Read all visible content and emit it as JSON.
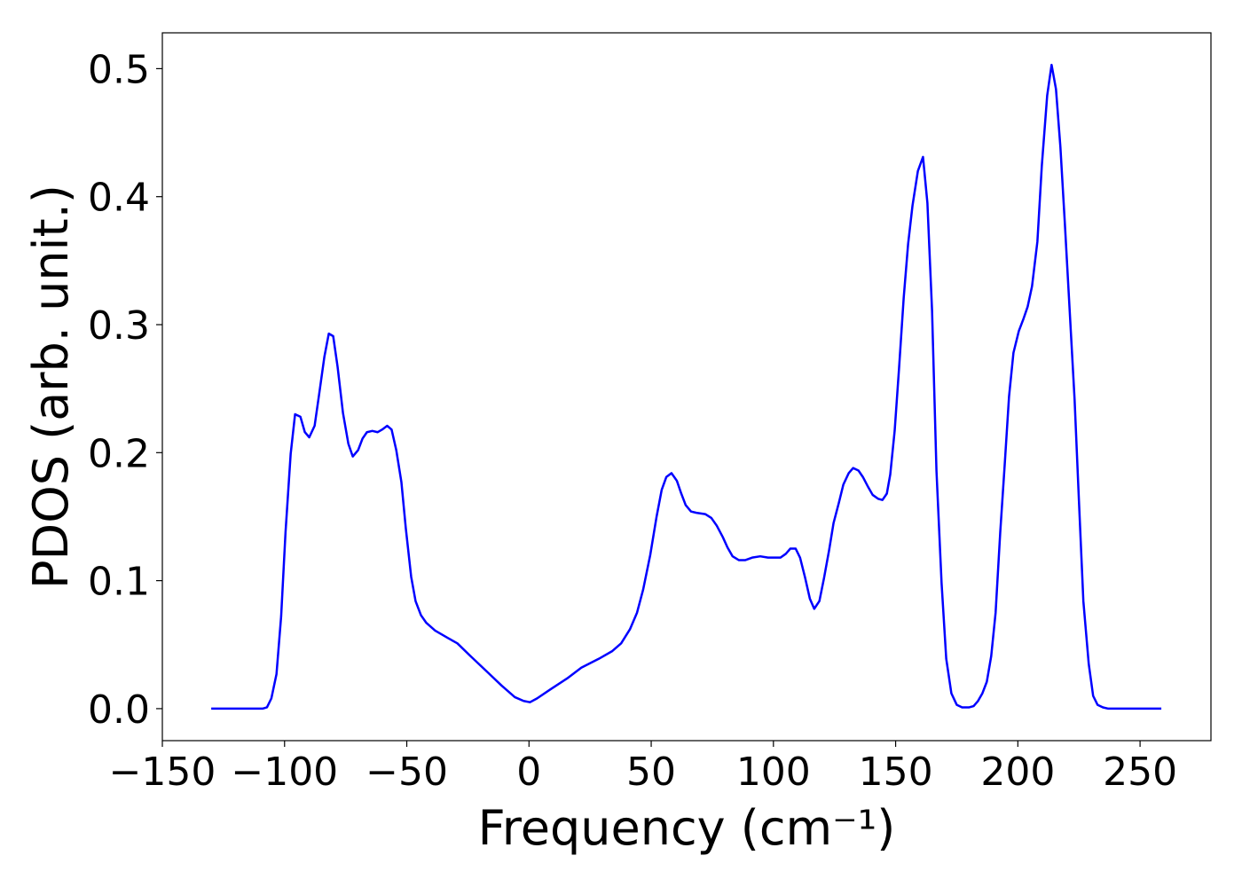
{
  "chart_data": {
    "type": "line",
    "x_label": "Frequency (cm⁻¹)",
    "y_label": "PDOS (arb. unit.)",
    "x": [
      -130,
      -109,
      -107.2,
      -105.4,
      -103.3,
      -101.4,
      -99.6,
      -97.5,
      -95.7,
      -93.5,
      -91.7,
      -89.9,
      -87.7,
      -85.9,
      -83.7,
      -81.9,
      -80.1,
      -78.3,
      -76.1,
      -73.9,
      -72.1,
      -69.9,
      -68.1,
      -66.3,
      -64.1,
      -61.9,
      -60.1,
      -58,
      -56.2,
      -54.3,
      -52.2,
      -50.4,
      -48.2,
      -46.4,
      -44.2,
      -42,
      -38.4,
      -33,
      -29.3,
      -23.9,
      -16.7,
      -11.2,
      -5.8,
      -2.2,
      0.4,
      3.3,
      8.7,
      15.9,
      21.4,
      28.6,
      34.1,
      37.7,
      41.3,
      44.2,
      46.7,
      49.6,
      52.2,
      54.3,
      56.2,
      58.3,
      60.5,
      62.3,
      64.1,
      66.3,
      68.5,
      72.1,
      74.6,
      76.8,
      79.3,
      81.2,
      83.3,
      85.9,
      88.4,
      91.3,
      94.6,
      97.8,
      101.1,
      102.9,
      105.1,
      106.9,
      109.1,
      110.9,
      113,
      114.9,
      116.7,
      118.8,
      120.7,
      122.8,
      124.6,
      126.8,
      128.6,
      130.8,
      132.6,
      134.8,
      136.6,
      138.8,
      140.6,
      142.8,
      144.6,
      146.4,
      147.8,
      149.6,
      151.4,
      153.3,
      155.1,
      156.9,
      159.1,
      161.2,
      163,
      164.9,
      166.7,
      168.8,
      170.7,
      172.8,
      175,
      177.2,
      180.1,
      181.9,
      183.7,
      185.5,
      187.3,
      189.1,
      190.9,
      192.8,
      194.6,
      196.4,
      198.2,
      200.4,
      202.2,
      204,
      205.8,
      208,
      209.8,
      212,
      213.8,
      215.6,
      217.4,
      219.2,
      221,
      223.2,
      225,
      226.8,
      229,
      230.8,
      232.6,
      234.8,
      237,
      258.7
    ],
    "series": [
      {
        "color": "#0000ff",
        "values": [
          0,
          0,
          0.001,
          0.008,
          0.027,
          0.072,
          0.138,
          0.199,
          0.23,
          0.228,
          0.216,
          0.212,
          0.221,
          0.245,
          0.275,
          0.293,
          0.291,
          0.267,
          0.231,
          0.207,
          0.197,
          0.202,
          0.211,
          0.216,
          0.217,
          0.216,
          0.218,
          0.221,
          0.218,
          0.202,
          0.177,
          0.141,
          0.103,
          0.084,
          0.073,
          0.067,
          0.061,
          0.055,
          0.051,
          0.041,
          0.028,
          0.018,
          0.009,
          0.006,
          0.005,
          0.008,
          0.015,
          0.024,
          0.032,
          0.039,
          0.045,
          0.051,
          0.062,
          0.075,
          0.093,
          0.12,
          0.15,
          0.171,
          0.181,
          0.184,
          0.178,
          0.168,
          0.159,
          0.154,
          0.153,
          0.152,
          0.149,
          0.143,
          0.134,
          0.126,
          0.119,
          0.116,
          0.116,
          0.118,
          0.119,
          0.118,
          0.118,
          0.118,
          0.121,
          0.125,
          0.125,
          0.118,
          0.102,
          0.086,
          0.078,
          0.084,
          0.102,
          0.124,
          0.145,
          0.161,
          0.175,
          0.184,
          0.188,
          0.186,
          0.181,
          0.173,
          0.167,
          0.164,
          0.163,
          0.168,
          0.183,
          0.217,
          0.266,
          0.321,
          0.363,
          0.393,
          0.42,
          0.431,
          0.395,
          0.311,
          0.186,
          0.098,
          0.039,
          0.012,
          0.003,
          0.001,
          0.001,
          0.002,
          0.006,
          0.012,
          0.021,
          0.041,
          0.075,
          0.138,
          0.19,
          0.244,
          0.278,
          0.295,
          0.304,
          0.314,
          0.33,
          0.365,
          0.424,
          0.479,
          0.503,
          0.484,
          0.439,
          0.38,
          0.318,
          0.242,
          0.162,
          0.084,
          0.035,
          0.01,
          0.003,
          0.001,
          0,
          0
        ]
      }
    ],
    "xlim": [
      -150,
      279
    ],
    "ylim": [
      -0.025,
      0.528
    ],
    "xticks": [
      {
        "value": -150,
        "label": "−150"
      },
      {
        "value": -100,
        "label": "−100"
      },
      {
        "value": -50,
        "label": "−50"
      },
      0,
      50,
      100,
      150,
      200,
      250
    ],
    "yticks": [
      {
        "value": 0,
        "label": "0.0"
      },
      0.1,
      0.2,
      0.3,
      0.4,
      0.5
    ],
    "grid": false
  }
}
